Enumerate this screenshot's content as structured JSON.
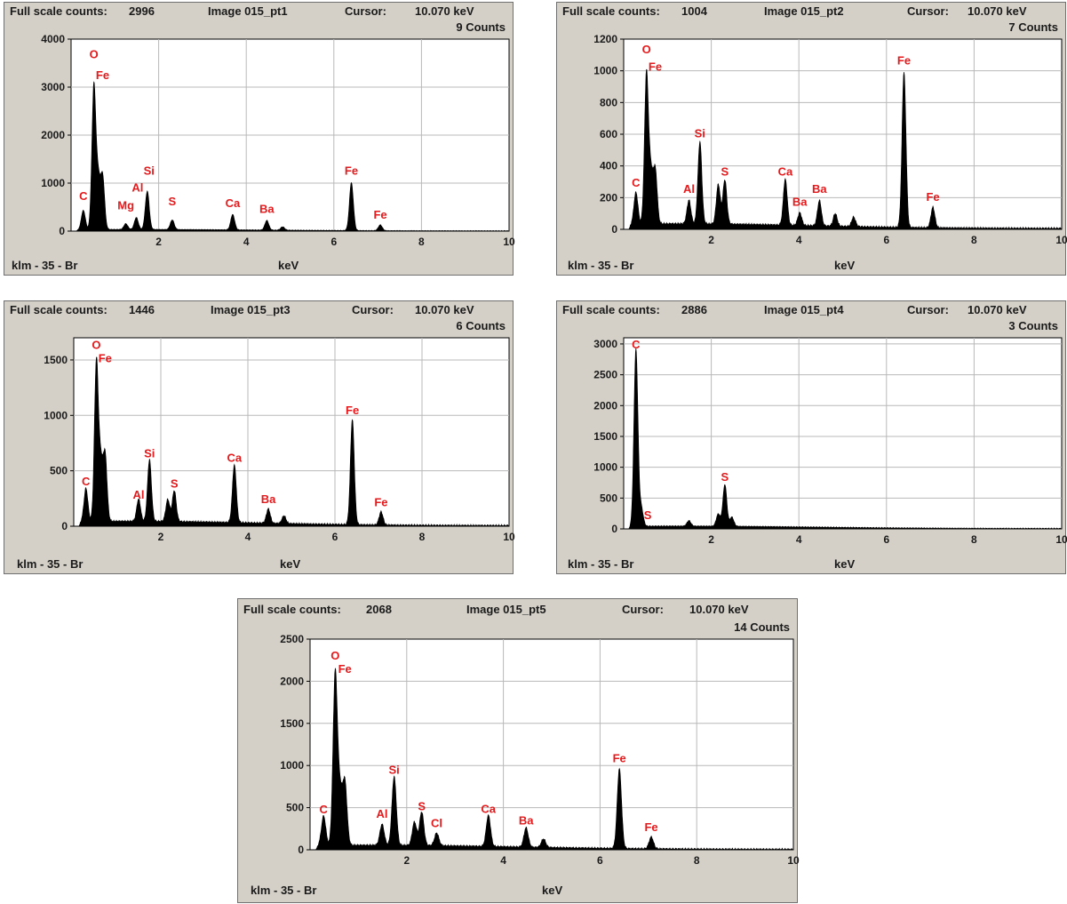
{
  "common": {
    "full_scale_label": "Full scale counts:",
    "cursor_label": "Cursor:",
    "cursor_value": "10.070 keV",
    "footer_left": "klm - 35 - Br",
    "xlabel": "keV",
    "peak_color": "#e41a1c",
    "fill_color": "#000000"
  },
  "chart_data": [
    {
      "type": "area",
      "image_label": "Image 015_pt1",
      "full_scale_counts": "2996",
      "counts_label": "9 Counts",
      "xlabel": "keV",
      "xlim": [
        0,
        10
      ],
      "ylim": [
        0,
        4000
      ],
      "xticks": [
        2,
        4,
        6,
        8,
        10
      ],
      "yticks": [
        0,
        1000,
        2000,
        3000,
        4000
      ],
      "grid": true,
      "baseline": 30,
      "peaks": [
        {
          "x": 0.28,
          "y": 400
        },
        {
          "x": 0.52,
          "y": 2990
        },
        {
          "x": 0.62,
          "y": 1000
        },
        {
          "x": 0.72,
          "y": 1100
        },
        {
          "x": 1.25,
          "y": 120
        },
        {
          "x": 1.49,
          "y": 250
        },
        {
          "x": 1.74,
          "y": 800
        },
        {
          "x": 2.31,
          "y": 200
        },
        {
          "x": 3.69,
          "y": 320
        },
        {
          "x": 4.47,
          "y": 200
        },
        {
          "x": 4.83,
          "y": 70
        },
        {
          "x": 6.4,
          "y": 1000
        },
        {
          "x": 7.06,
          "y": 120
        }
      ],
      "labels": [
        {
          "text": "O",
          "x": 0.52,
          "y": 3600
        },
        {
          "text": "Fe",
          "x": 0.72,
          "y": 3170
        },
        {
          "text": "C",
          "x": 0.28,
          "y": 650
        },
        {
          "text": "Mg",
          "x": 1.25,
          "y": 450
        },
        {
          "text": "Al",
          "x": 1.52,
          "y": 820
        },
        {
          "text": "Si",
          "x": 1.78,
          "y": 1180
        },
        {
          "text": "S",
          "x": 2.31,
          "y": 540
        },
        {
          "text": "Ca",
          "x": 3.69,
          "y": 500
        },
        {
          "text": "Ba",
          "x": 4.47,
          "y": 380
        },
        {
          "text": "Fe",
          "x": 6.4,
          "y": 1180
        },
        {
          "text": "Fe",
          "x": 7.06,
          "y": 260
        }
      ]
    },
    {
      "type": "area",
      "image_label": "Image 015_pt2",
      "full_scale_counts": "1004",
      "counts_label": "7 Counts",
      "xlabel": "keV",
      "xlim": [
        0,
        10
      ],
      "ylim": [
        0,
        1200
      ],
      "xticks": [
        2,
        4,
        6,
        8,
        10
      ],
      "yticks": [
        0,
        200,
        400,
        600,
        800,
        1000,
        1200
      ],
      "grid": true,
      "baseline": 30,
      "peaks": [
        {
          "x": 0.28,
          "y": 200
        },
        {
          "x": 0.52,
          "y": 950
        },
        {
          "x": 0.62,
          "y": 300
        },
        {
          "x": 0.72,
          "y": 340
        },
        {
          "x": 1.49,
          "y": 150
        },
        {
          "x": 1.74,
          "y": 520
        },
        {
          "x": 2.16,
          "y": 250
        },
        {
          "x": 2.31,
          "y": 280
        },
        {
          "x": 3.69,
          "y": 290
        },
        {
          "x": 4.02,
          "y": 80
        },
        {
          "x": 4.47,
          "y": 160
        },
        {
          "x": 4.83,
          "y": 80
        },
        {
          "x": 5.25,
          "y": 60
        },
        {
          "x": 6.4,
          "y": 980
        },
        {
          "x": 7.06,
          "y": 130
        }
      ],
      "labels": [
        {
          "text": "O",
          "x": 0.52,
          "y": 1110
        },
        {
          "text": "Fe",
          "x": 0.72,
          "y": 1000
        },
        {
          "text": "C",
          "x": 0.28,
          "y": 270
        },
        {
          "text": "Al",
          "x": 1.49,
          "y": 230
        },
        {
          "text": "Si",
          "x": 1.74,
          "y": 580
        },
        {
          "text": "S",
          "x": 2.31,
          "y": 340
        },
        {
          "text": "Ca",
          "x": 3.69,
          "y": 340
        },
        {
          "text": "Ba",
          "x": 4.02,
          "y": 150
        },
        {
          "text": "Ba",
          "x": 4.47,
          "y": 230
        },
        {
          "text": "Fe",
          "x": 6.4,
          "y": 1040
        },
        {
          "text": "Fe",
          "x": 7.06,
          "y": 180
        }
      ]
    },
    {
      "type": "area",
      "image_label": "Image 015_pt3",
      "full_scale_counts": "1446",
      "counts_label": "6 Counts",
      "xlabel": "keV",
      "xlim": [
        0,
        10
      ],
      "ylim": [
        0,
        1700
      ],
      "xticks": [
        2,
        4,
        6,
        8,
        10
      ],
      "yticks": [
        0,
        500,
        1000,
        1500
      ],
      "grid": true,
      "baseline": 40,
      "peaks": [
        {
          "x": 0.28,
          "y": 300
        },
        {
          "x": 0.52,
          "y": 1440
        },
        {
          "x": 0.62,
          "y": 500
        },
        {
          "x": 0.72,
          "y": 600
        },
        {
          "x": 1.49,
          "y": 200
        },
        {
          "x": 1.74,
          "y": 560
        },
        {
          "x": 2.16,
          "y": 200
        },
        {
          "x": 2.31,
          "y": 280
        },
        {
          "x": 3.69,
          "y": 520
        },
        {
          "x": 4.47,
          "y": 130
        },
        {
          "x": 4.83,
          "y": 70
        },
        {
          "x": 6.4,
          "y": 950
        },
        {
          "x": 7.06,
          "y": 120
        }
      ],
      "labels": [
        {
          "text": "O",
          "x": 0.52,
          "y": 1600
        },
        {
          "text": "Fe",
          "x": 0.72,
          "y": 1480
        },
        {
          "text": "C",
          "x": 0.28,
          "y": 370
        },
        {
          "text": "Al",
          "x": 1.49,
          "y": 250
        },
        {
          "text": "Si",
          "x": 1.74,
          "y": 620
        },
        {
          "text": "S",
          "x": 2.31,
          "y": 350
        },
        {
          "text": "Ca",
          "x": 3.69,
          "y": 580
        },
        {
          "text": "Ba",
          "x": 4.47,
          "y": 210
        },
        {
          "text": "Fe",
          "x": 6.4,
          "y": 1010
        },
        {
          "text": "Fe",
          "x": 7.06,
          "y": 180
        }
      ]
    },
    {
      "type": "area",
      "image_label": "Image 015_pt4",
      "full_scale_counts": "2886",
      "counts_label": "3 Counts",
      "xlabel": "keV",
      "xlim": [
        0,
        10
      ],
      "ylim": [
        0,
        3100
      ],
      "xticks": [
        2,
        4,
        6,
        8,
        10
      ],
      "yticks": [
        0,
        500,
        1000,
        1500,
        2000,
        2500,
        3000
      ],
      "grid": true,
      "baseline": 40,
      "peaks": [
        {
          "x": 0.28,
          "y": 2880
        },
        {
          "x": 0.4,
          "y": 300
        },
        {
          "x": 1.49,
          "y": 90
        },
        {
          "x": 2.16,
          "y": 200
        },
        {
          "x": 2.31,
          "y": 680
        },
        {
          "x": 2.47,
          "y": 150
        }
      ],
      "labels": [
        {
          "text": "C",
          "x": 0.28,
          "y": 2930
        },
        {
          "text": "S",
          "x": 0.55,
          "y": 160
        },
        {
          "text": "S",
          "x": 2.31,
          "y": 780
        }
      ]
    },
    {
      "type": "area",
      "image_label": "Image 015_pt5",
      "full_scale_counts": "2068",
      "counts_label": "14 Counts",
      "xlabel": "keV",
      "xlim": [
        0,
        10
      ],
      "ylim": [
        0,
        2500
      ],
      "xticks": [
        2,
        4,
        6,
        8,
        10
      ],
      "yticks": [
        0,
        500,
        1000,
        1500,
        2000,
        2500
      ],
      "grid": true,
      "baseline": 50,
      "peaks": [
        {
          "x": 0.28,
          "y": 350
        },
        {
          "x": 0.52,
          "y": 2050
        },
        {
          "x": 0.62,
          "y": 600
        },
        {
          "x": 0.72,
          "y": 750
        },
        {
          "x": 1.49,
          "y": 250
        },
        {
          "x": 1.74,
          "y": 820
        },
        {
          "x": 2.16,
          "y": 280
        },
        {
          "x": 2.31,
          "y": 400
        },
        {
          "x": 2.62,
          "y": 150
        },
        {
          "x": 3.69,
          "y": 370
        },
        {
          "x": 4.47,
          "y": 230
        },
        {
          "x": 4.83,
          "y": 100
        },
        {
          "x": 6.4,
          "y": 950
        },
        {
          "x": 7.06,
          "y": 140
        }
      ],
      "labels": [
        {
          "text": "O",
          "x": 0.52,
          "y": 2260
        },
        {
          "text": "Fe",
          "x": 0.72,
          "y": 2100
        },
        {
          "text": "C",
          "x": 0.28,
          "y": 430
        },
        {
          "text": "Al",
          "x": 1.49,
          "y": 380
        },
        {
          "text": "Si",
          "x": 1.74,
          "y": 900
        },
        {
          "text": "S",
          "x": 2.31,
          "y": 470
        },
        {
          "text": "Cl",
          "x": 2.62,
          "y": 270
        },
        {
          "text": "Ca",
          "x": 3.69,
          "y": 440
        },
        {
          "text": "Ba",
          "x": 4.47,
          "y": 300
        },
        {
          "text": "Fe",
          "x": 6.4,
          "y": 1040
        },
        {
          "text": "Fe",
          "x": 7.06,
          "y": 220
        }
      ]
    }
  ]
}
